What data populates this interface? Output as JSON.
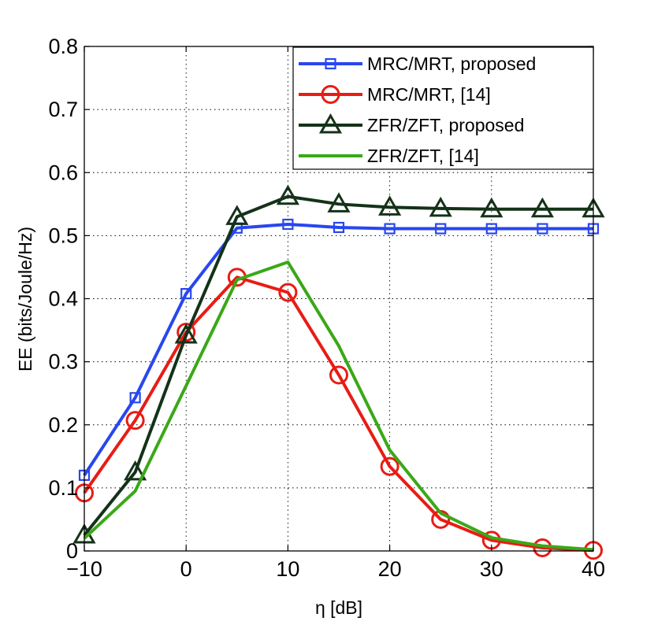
{
  "chart_data": {
    "type": "line",
    "xlabel": "η [dB]",
    "ylabel": "EE (bits/Joule/Hz)",
    "xlim": [
      -10,
      40
    ],
    "ylim": [
      0,
      0.8
    ],
    "xticks": [
      -10,
      0,
      10,
      20,
      30,
      40
    ],
    "xtick_labels": [
      "−10",
      "0",
      "10",
      "20",
      "30",
      "40"
    ],
    "yticks": [
      0,
      0.1,
      0.2,
      0.3,
      0.4,
      0.5,
      0.6,
      0.7,
      0.8
    ],
    "ytick_labels": [
      "0",
      "0.1",
      "0.2",
      "0.3",
      "0.4",
      "0.5",
      "0.6",
      "0.7",
      "0.8"
    ],
    "grid": true,
    "legend_position": "top-right",
    "series": [
      {
        "name": "MRC/MRT, proposed",
        "color": "#2846f0",
        "marker": "square",
        "x": [
          -10,
          -5,
          0,
          5,
          10,
          15,
          20,
          25,
          30,
          35,
          40
        ],
        "y": [
          0.12,
          0.243,
          0.408,
          0.512,
          0.518,
          0.513,
          0.511,
          0.511,
          0.511,
          0.511,
          0.511
        ]
      },
      {
        "name": "MRC/MRT, [14]",
        "color": "#e81c14",
        "marker": "circle",
        "x": [
          -10,
          -5,
          0,
          5,
          10,
          15,
          20,
          25,
          30,
          35,
          40
        ],
        "y": [
          0.092,
          0.207,
          0.347,
          0.434,
          0.41,
          0.279,
          0.134,
          0.05,
          0.017,
          0.005,
          0.001
        ]
      },
      {
        "name": "ZFR/ZFT, proposed",
        "color": "#143218",
        "marker": "triangle",
        "x": [
          -10,
          -5,
          0,
          5,
          10,
          15,
          20,
          25,
          30,
          35,
          40
        ],
        "y": [
          0.025,
          0.125,
          0.342,
          0.53,
          0.562,
          0.55,
          0.545,
          0.543,
          0.542,
          0.542,
          0.542
        ]
      },
      {
        "name": "ZFR/ZFT, [14]",
        "color": "#3aa818",
        "marker": "none",
        "x": [
          -10,
          -5,
          0,
          5,
          10,
          15,
          20,
          25,
          30,
          35,
          40
        ],
        "y": [
          0.02,
          0.095,
          0.262,
          0.43,
          0.458,
          0.325,
          0.16,
          0.06,
          0.021,
          0.008,
          0.002
        ]
      }
    ]
  }
}
